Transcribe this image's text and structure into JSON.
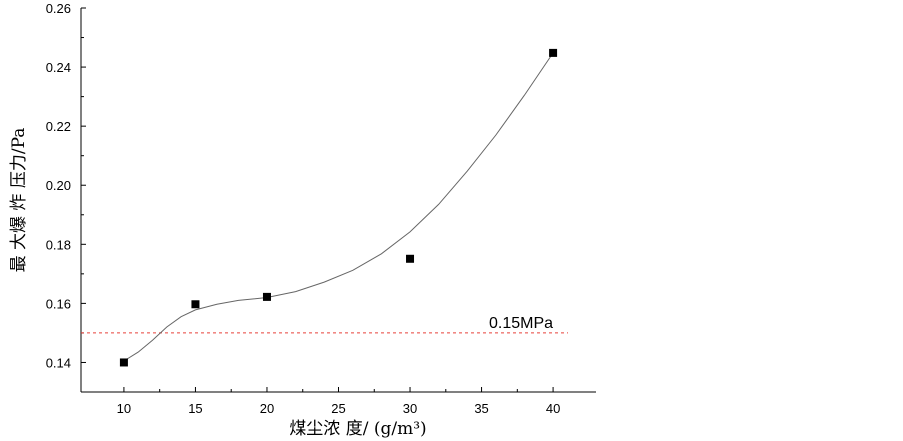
{
  "chart_data": {
    "type": "scatter",
    "title": "",
    "xlabel": "煤尘浓 度/ (g/m³)",
    "ylabel": "最 大爆 炸 压力/Pa",
    "xlim": [
      7,
      43
    ],
    "ylim": [
      0.13,
      0.26
    ],
    "x_ticks": [
      10,
      15,
      20,
      25,
      30,
      35,
      40
    ],
    "x_tick_labels": [
      "10",
      "15",
      "20",
      "25",
      "30",
      "35",
      "40"
    ],
    "y_ticks": [
      0.14,
      0.16,
      0.18,
      0.2,
      0.22,
      0.24,
      0.26
    ],
    "y_tick_labels": [
      "0.14",
      "0.16",
      "0.18",
      "0.20",
      "0.22",
      "0.24",
      "0.26"
    ],
    "series": [
      {
        "x": [
          10,
          15,
          20,
          30,
          40
        ],
        "values": [
          0.14,
          0.1597,
          0.1622,
          0.1751,
          0.2448
        ],
        "marker": "square",
        "color": "#000000"
      }
    ],
    "fit_curve": [
      [
        10,
        0.1405
      ],
      [
        11,
        0.1435
      ],
      [
        12,
        0.1475
      ],
      [
        13,
        0.152
      ],
      [
        14,
        0.1555
      ],
      [
        15,
        0.1578
      ],
      [
        16.5,
        0.1597
      ],
      [
        18,
        0.161
      ],
      [
        20,
        0.162
      ],
      [
        22,
        0.164
      ],
      [
        24,
        0.1672
      ],
      [
        26,
        0.1712
      ],
      [
        28,
        0.1768
      ],
      [
        30,
        0.1842
      ],
      [
        32,
        0.1935
      ],
      [
        34,
        0.2048
      ],
      [
        36,
        0.217
      ],
      [
        38,
        0.2305
      ],
      [
        40,
        0.2448
      ]
    ],
    "fit_color": "#666666",
    "reference_line": {
      "y": 0.15,
      "label": "0.15MPa",
      "color": "#e8403a",
      "style": "dashed"
    },
    "grid": false,
    "legend": "none"
  }
}
